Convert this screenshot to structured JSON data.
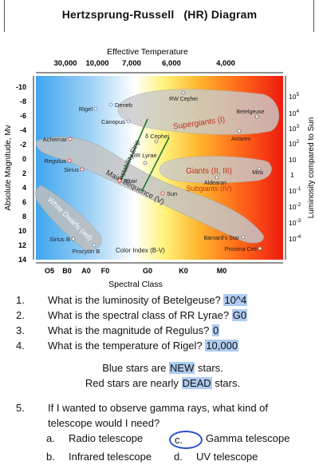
{
  "title": {
    "part1": "Hertzsprung-Russell",
    "part2": "(HR) Diagram"
  },
  "diagram": {
    "top_axis_title": "Effective Temperature",
    "top_ticks": [
      "30,000",
      "10,000",
      "7,000",
      "6,000",
      "4,000"
    ],
    "left_axis_label": "Absolute Magnitude, Mv",
    "left_ticks": [
      "-10",
      "-8",
      "-6",
      "-4",
      "-2",
      "0",
      "2",
      "4",
      "6",
      "8",
      "10",
      "12",
      "14"
    ],
    "right_axis_label": "Luminosity compared to Sun",
    "right_ticks": [
      {
        "base": "10",
        "exp": "5"
      },
      {
        "base": "10",
        "exp": "4"
      },
      {
        "base": "10",
        "exp": "3"
      },
      {
        "base": "10",
        "exp": "2"
      },
      {
        "base": "10",
        "exp": ""
      },
      {
        "base": "1",
        "exp": ""
      },
      {
        "base": "10",
        "exp": "-1"
      },
      {
        "base": "10",
        "exp": "-2"
      },
      {
        "base": "10",
        "exp": "-3"
      },
      {
        "base": "10",
        "exp": "-4"
      }
    ],
    "bottom_ticks": [
      "O5",
      "B0",
      "A0",
      "F0",
      "G0",
      "K0",
      "M0"
    ],
    "bottom_axis_title": "Spectral Class",
    "regions": {
      "supergiants": "Supergiants (I)",
      "giants": "Giants (II, III)",
      "subgiants": "Subgiants (IV)",
      "main_sequence": "Main Sequence (V)",
      "white_dwarfs": "White Dwarfs (wd)",
      "instability_strip": "Instability Strip",
      "color_index": "Color Index (B-V)"
    },
    "stars": {
      "rw_cephei": "RW Cephei",
      "deneb": "Deneb",
      "rigel": "Rigel",
      "canopus": "Canopus",
      "betelgeuse": "Betelgeuse",
      "antares": "Antares",
      "achernar": "Achernar",
      "delta_cephei": "δ Cephei",
      "rr_lyrae": "RR Lyrae",
      "regulus": "Regulus",
      "sirius": "Sirius",
      "altair": "Altair",
      "sun": "Sun",
      "mira": "Mira",
      "aldearan": "Aldearan",
      "sirius_b": "Sirius B",
      "procyon_b": "Procyon B",
      "barnards_star": "Barnard's Star",
      "proxima_ceti": "Proxima Ceti"
    }
  },
  "questions": [
    {
      "num": "1.",
      "text": "What is the luminosity of Betelgeuse?",
      "answer": "10^4"
    },
    {
      "num": "2.",
      "text": "What is the spectral class of RR Lyrae?",
      "answer": "G0"
    },
    {
      "num": "3.",
      "text": "What is the magnitude of Regulus?",
      "answer": "0"
    },
    {
      "num": "4.",
      "text": "What is the temperature of Rigel?",
      "answer": "10,000"
    }
  ],
  "statements": [
    {
      "before": "Blue stars are",
      "highlight": "NEW",
      "after": "stars."
    },
    {
      "before": "Red stars are nearly",
      "highlight": "DEAD",
      "after": "stars."
    }
  ],
  "q5": {
    "num": "5.",
    "text": "If I wanted to observe gamma rays, what kind of telescope would I need?",
    "options": [
      {
        "letter": "a.",
        "text": "Radio telescope"
      },
      {
        "letter": "c.",
        "text": "Gamma telescope"
      },
      {
        "letter": "b.",
        "text": "Infrared telescope"
      },
      {
        "letter": "d.",
        "text": "UV telescope"
      }
    ]
  },
  "colors": {
    "highlight": "#aecbf0",
    "circle": "#2a4fd1"
  }
}
